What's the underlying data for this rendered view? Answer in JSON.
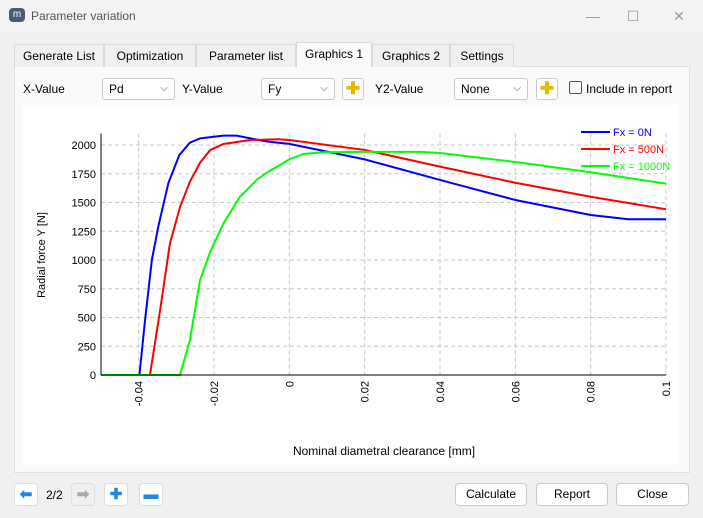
{
  "window": {
    "title": "Parameter variation",
    "minimize": "—",
    "maximize": "☐",
    "close": "✕"
  },
  "tabs": [
    {
      "label": "Generate List"
    },
    {
      "label": "Optimization"
    },
    {
      "label": "Parameter list"
    },
    {
      "label": "Graphics 1",
      "active": true
    },
    {
      "label": "Graphics 2"
    },
    {
      "label": "Settings"
    }
  ],
  "controls": {
    "x_label": "X-Value",
    "x_value": "Pd",
    "y_label": "Y-Value",
    "y_value": "Fy",
    "y2_label": "Y2-Value",
    "y2_value": "None",
    "include_label": "Include in report",
    "include_checked": false,
    "add_icon": "plus-icon"
  },
  "footer": {
    "page": "2/2",
    "calculate": "Calculate",
    "report": "Report",
    "close": "Close"
  },
  "chart_data": {
    "type": "line",
    "xlabel": "Nominal diametral clearance [mm]",
    "ylabel": "Radial force Y [N]",
    "xlim": [
      -0.05,
      0.1
    ],
    "ylim": [
      0,
      2100
    ],
    "xticks": [
      "-0.04",
      "-0.02",
      "0",
      "0.02",
      "0.04",
      "0.06",
      "0.08",
      "0.1"
    ],
    "yticks": [
      "0",
      "250",
      "500",
      "750",
      "1000",
      "1250",
      "1500",
      "1750",
      "2000"
    ],
    "grid": true,
    "legend": "top-right",
    "series": [
      {
        "name": "Fx = 0N",
        "color": "#0000ff",
        "x": [
          -0.05,
          -0.0398,
          -0.0383,
          -0.0365,
          -0.0348,
          -0.0321,
          -0.0292,
          -0.0264,
          -0.0237,
          -0.0175,
          -0.014,
          -0.006,
          0.0,
          0.02,
          0.04,
          0.06,
          0.08,
          0.09,
          0.1
        ],
        "y": [
          0,
          0,
          478,
          1000,
          1290,
          1670,
          1913,
          2020,
          2058,
          2081,
          2081,
          2030,
          2010,
          1875,
          1696,
          1522,
          1391,
          1354,
          1354
        ]
      },
      {
        "name": "Fx = 500N",
        "color": "#ff0000",
        "x": [
          -0.05,
          -0.037,
          -0.0343,
          -0.0317,
          -0.029,
          -0.0264,
          -0.0237,
          -0.021,
          -0.0175,
          -0.0104,
          -0.003,
          0.0,
          0.02,
          0.04,
          0.06,
          0.08,
          0.1
        ],
        "y": [
          0,
          0,
          565,
          1145,
          1463,
          1681,
          1846,
          1957,
          2009,
          2043,
          2050,
          2043,
          1957,
          1812,
          1672,
          1550,
          1441
        ]
      },
      {
        "name": "Fx = 1000N",
        "color": "#00ff00",
        "x": [
          -0.05,
          -0.029,
          -0.0264,
          -0.0237,
          -0.021,
          -0.0175,
          -0.0131,
          -0.0087,
          -0.006,
          0.0,
          0.0037,
          0.009,
          0.02,
          0.035,
          0.04,
          0.06,
          0.08,
          0.1
        ],
        "y": [
          0,
          0,
          304,
          826,
          1072,
          1318,
          1550,
          1696,
          1759,
          1875,
          1922,
          1937,
          1940,
          1940,
          1930,
          1852,
          1763,
          1664
        ]
      }
    ]
  }
}
